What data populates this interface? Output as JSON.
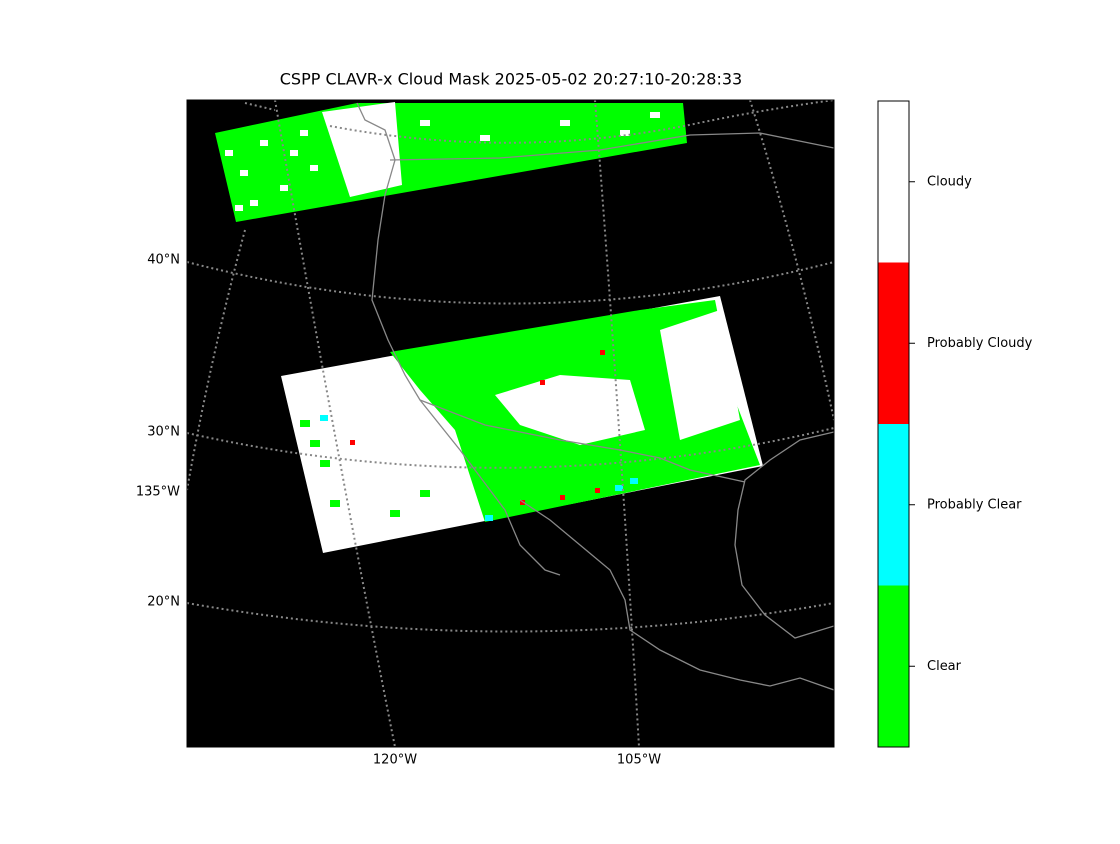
{
  "title": "CSPP CLAVR-x Cloud Mask 2025-05-02 20:27:10-20:28:33",
  "lat_labels": [
    "40°N",
    "30°N",
    "135°W",
    "20°N"
  ],
  "lon_labels": [
    "120°W",
    "105°W"
  ],
  "colorbar": {
    "classes": [
      {
        "label": "Cloudy",
        "color": "#ffffff"
      },
      {
        "label": "Probably Cloudy",
        "color": "#ff0000"
      },
      {
        "label": "Probably Clear",
        "color": "#00ffff"
      },
      {
        "label": "Clear",
        "color": "#00ff00"
      }
    ]
  }
}
